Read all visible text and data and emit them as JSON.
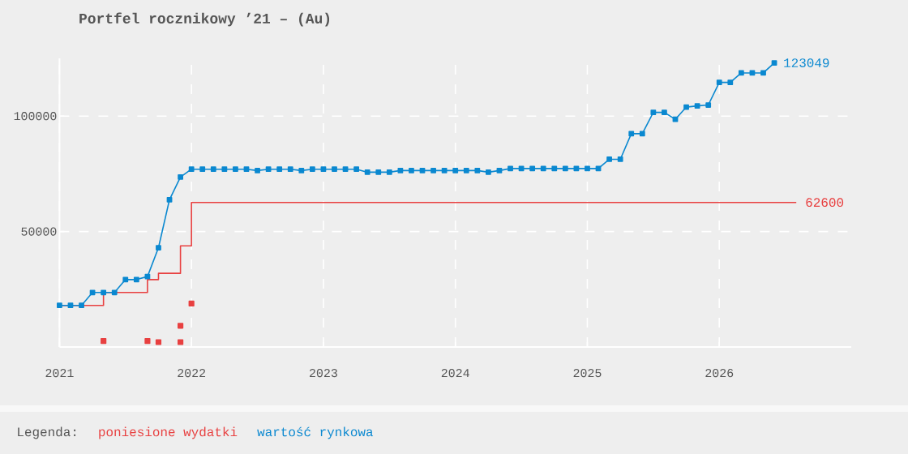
{
  "chart_data": {
    "type": "line",
    "title": "Portfel rocznikowy ’21 – (Au)",
    "legend_title": "Legenda:",
    "x": [
      "2021-01",
      "2021-02",
      "2021-03",
      "2021-04",
      "2021-05",
      "2021-06",
      "2021-07",
      "2021-08",
      "2021-09",
      "2021-10",
      "2021-11",
      "2021-12",
      "2022-01",
      "2022-02",
      "2022-03",
      "2022-04",
      "2022-05",
      "2022-06",
      "2022-07",
      "2022-08",
      "2022-09",
      "2022-10",
      "2022-11",
      "2022-12",
      "2023-01",
      "2023-02",
      "2023-03",
      "2023-04",
      "2023-05",
      "2023-06",
      "2023-07",
      "2023-08",
      "2023-09",
      "2023-10",
      "2023-11",
      "2023-12",
      "2024-01",
      "2024-02",
      "2024-03",
      "2024-04",
      "2024-05",
      "2024-06",
      "2024-07",
      "2024-08",
      "2024-09",
      "2024-10",
      "2024-11",
      "2024-12",
      "2025-01",
      "2025-02",
      "2025-03",
      "2025-04",
      "2025-05",
      "2025-06",
      "2025-07",
      "2025-08",
      "2025-09",
      "2025-10",
      "2025-11",
      "2025-12",
      "2026-01",
      "2026-02",
      "2026-03",
      "2026-04",
      "2026-05",
      "2026-06"
    ],
    "series": [
      {
        "name": "poniesione wydatki",
        "type": "step",
        "color": "#e84040",
        "marker": "none",
        "x": [
          "2021-01",
          "2021-05",
          "2021-09",
          "2021-10",
          "2021-12",
          "2022-01",
          "2026-08"
        ],
        "values": [
          18000,
          23600,
          29200,
          31900,
          43800,
          62600,
          62600
        ],
        "value_labels": [
          null,
          null,
          null,
          null,
          null,
          null,
          "62600"
        ]
      },
      {
        "type": "scatter",
        "color": "#e84040",
        "marker": "square",
        "x": [
          "2021-05",
          "2021-09",
          "2021-10",
          "2021-12",
          "2021-12",
          "2022-01"
        ],
        "values": [
          2600,
          2600,
          2100,
          2100,
          9200,
          18800
        ]
      },
      {
        "name": "wartość rynkowa",
        "color": "#0a88d0",
        "marker": "square",
        "values": [
          18000,
          18000,
          18000,
          23600,
          23600,
          23600,
          29200,
          29200,
          30500,
          43000,
          63800,
          73600,
          77000,
          77000,
          77000,
          77000,
          77000,
          77000,
          76400,
          77000,
          77000,
          77000,
          76400,
          77000,
          77000,
          77000,
          77000,
          77000,
          75700,
          75700,
          75700,
          76400,
          76400,
          76400,
          76400,
          76400,
          76400,
          76400,
          76400,
          75700,
          76400,
          77300,
          77300,
          77300,
          77300,
          77300,
          77300,
          77300,
          77300,
          77300,
          81300,
          81300,
          92400,
          92400,
          101600,
          101600,
          98600,
          103900,
          104400,
          104800,
          114600,
          114600,
          118700,
          118700,
          118700,
          123049
        ],
        "value_labels": [
          null,
          null,
          null,
          null,
          null,
          null,
          null,
          null,
          null,
          null,
          null,
          null,
          null,
          null,
          null,
          null,
          null,
          null,
          null,
          null,
          null,
          null,
          null,
          null,
          null,
          null,
          null,
          null,
          null,
          null,
          null,
          null,
          null,
          null,
          null,
          null,
          null,
          null,
          null,
          null,
          null,
          null,
          null,
          null,
          null,
          null,
          null,
          null,
          null,
          null,
          null,
          null,
          null,
          null,
          null,
          null,
          null,
          null,
          null,
          null,
          null,
          null,
          null,
          null,
          null,
          "123049"
        ]
      }
    ],
    "xlim": [
      "2021-01",
      "2027-01"
    ],
    "xticks": [
      "2021",
      "2022",
      "2023",
      "2024",
      "2025",
      "2026"
    ],
    "ylim": [
      0,
      125000
    ],
    "yticks": [
      50000,
      100000
    ],
    "grid": true,
    "legend": "bottom",
    "line_style": "solid"
  }
}
